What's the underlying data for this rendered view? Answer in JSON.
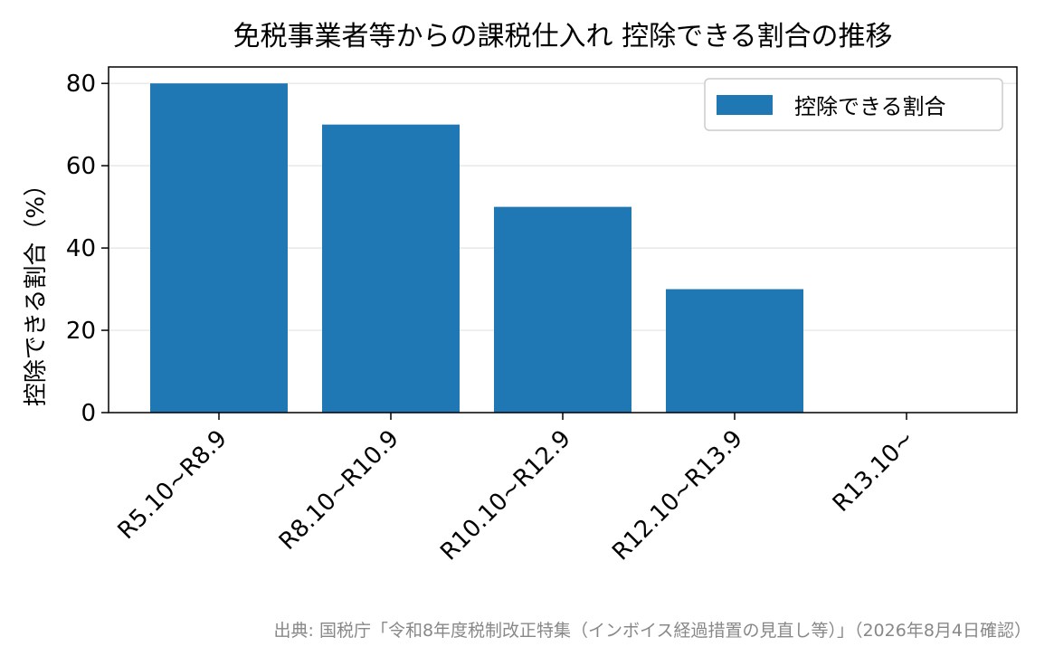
{
  "chart_data": {
    "type": "bar",
    "title": "免税事業者等からの課税仕入れ 控除できる割合の推移",
    "xlabel": "",
    "ylabel": "控除できる割合（%）",
    "categories": [
      "R5.10~R8.9",
      "R8.10~R10.9",
      "R10.10~R12.9",
      "R12.10~R13.9",
      "R13.10~"
    ],
    "series": [
      {
        "name": "控除できる割合",
        "values": [
          80,
          70,
          50,
          30,
          0
        ]
      }
    ],
    "ylim": [
      0,
      84
    ],
    "yticks": [
      0,
      20,
      40,
      60,
      80
    ],
    "grid": true,
    "legend_position": "top-right",
    "bar_color": "#1f77b4",
    "source": "出典: 国税庁「令和8年度税制改正特集（インボイス経過措置の見直し等）」（2026年8月4日確認）"
  }
}
